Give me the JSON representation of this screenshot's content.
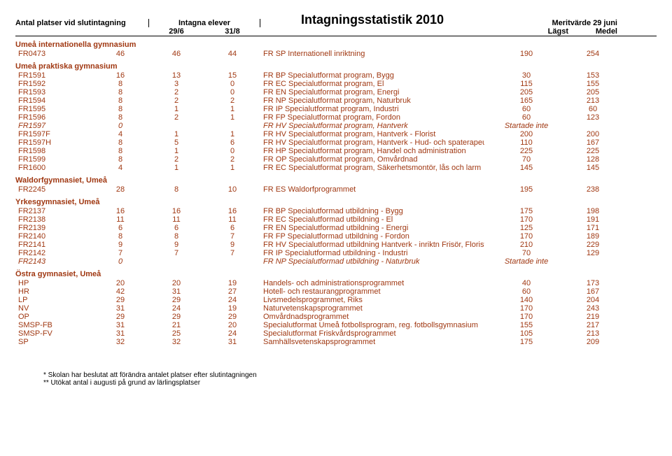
{
  "header": {
    "col1": "Antal platser vid slutintagning",
    "col2": "Intagna elever",
    "col3_title": "Intagningsstatistik 2010",
    "col4": "Meritvärde 29 juni",
    "sub_29_6": "29/6",
    "sub_31_8": "31/8",
    "sub_lagst": "Lägst",
    "sub_medel": "Medel"
  },
  "sections": [
    {
      "title": "Umeå internationella gymnasium",
      "rows": [
        {
          "code": "FR0473",
          "a": "46",
          "b": "46",
          "c": "44",
          "desc": "FR SP Internationell inriktning",
          "lagst": "190",
          "medel": "254"
        }
      ]
    },
    {
      "title": "Umeå praktiska gymnasium",
      "rows": [
        {
          "code": "FR1591",
          "a": "16",
          "b": "13",
          "c": "15",
          "desc": "FR BP Specialutformat program, Bygg",
          "lagst": "30",
          "medel": "153"
        },
        {
          "code": "FR1592",
          "a": "8",
          "b": "3",
          "c": "0",
          "desc": "FR EC Specialutformat program, El",
          "lagst": "115",
          "medel": "155"
        },
        {
          "code": "FR1593",
          "a": "8",
          "b": "2",
          "c": "0",
          "desc": "FR EN Specialutformat program, Energi",
          "lagst": "205",
          "medel": "205"
        },
        {
          "code": "FR1594",
          "a": "8",
          "b": "2",
          "c": "2",
          "desc": "FR NP Specialutformat program, Naturbruk",
          "lagst": "165",
          "medel": "213"
        },
        {
          "code": "FR1595",
          "a": "8",
          "b": "1",
          "c": "1",
          "desc": "FR IP Specialutformat program, Industri",
          "lagst": "60",
          "medel": "60"
        },
        {
          "code": "FR1596",
          "a": "8",
          "b": "2",
          "c": "1",
          "desc": "FR FP Specialutformat program, Fordon",
          "lagst": "60",
          "medel": "123"
        },
        {
          "code": "FR1597",
          "a": "0",
          "b": "",
          "c": "",
          "desc": "FR HV Specialutformat program, Hantverk",
          "lagst": "Startade inte",
          "medel": "",
          "italic": true
        },
        {
          "code": "FR1597F",
          "a": "4",
          "b": "1",
          "c": "1",
          "desc": "FR HV Specialutformat program, Hantverk - Florist",
          "lagst": "200",
          "medel": "200"
        },
        {
          "code": "FR1597H",
          "a": "8",
          "b": "5",
          "c": "6",
          "desc": "FR HV Specialutformat program, Hantverk - Hud- och spaterapeut",
          "lagst": "110",
          "medel": "167"
        },
        {
          "code": "FR1598",
          "a": "8",
          "b": "1",
          "c": "0",
          "desc": "FR HP Specialutformat program, Handel och administration",
          "lagst": "225",
          "medel": "225"
        },
        {
          "code": "FR1599",
          "a": "8",
          "b": "2",
          "c": "2",
          "desc": "FR OP Specialutformat program, Omvårdnad",
          "lagst": "70",
          "medel": "128"
        },
        {
          "code": "FR1600",
          "a": "4",
          "b": "1",
          "c": "1",
          "desc": "FR EC Specialutformat program, Säkerhetsmontör, lås och larm",
          "lagst": "145",
          "medel": "145"
        }
      ]
    },
    {
      "title": "Waldorfgymnasiet, Umeå",
      "rows": [
        {
          "code": "FR2245",
          "a": "28",
          "b": "8",
          "c": "10",
          "desc": "FR ES Waldorfprogrammet",
          "lagst": "195",
          "medel": "238"
        }
      ]
    },
    {
      "title": "Yrkesgymnasiet, Umeå",
      "rows": [
        {
          "code": "FR2137",
          "a": "16",
          "b": "16",
          "c": "16",
          "desc": "FR BP Specialutformad utbildning - Bygg",
          "lagst": "175",
          "medel": "198"
        },
        {
          "code": "FR2138",
          "a": "11",
          "b": "11",
          "c": "11",
          "desc": "FR EC Specialutformad utbildning - El",
          "lagst": "170",
          "medel": "191"
        },
        {
          "code": "FR2139",
          "a": "6",
          "b": "6",
          "c": "6",
          "desc": "FR EN Specialutformad utbildning - Energi",
          "lagst": "125",
          "medel": "171"
        },
        {
          "code": "FR2140",
          "a": "8",
          "b": "8",
          "c": "7",
          "desc": "FR FP Specialutformad utbildning - Fordon",
          "lagst": "170",
          "medel": "189"
        },
        {
          "code": "FR2141",
          "a": "9",
          "b": "9",
          "c": "9",
          "desc": "FR HV Specialutformad utbildning Hantverk - inriktn Frisör, Florist, Spa",
          "lagst": "210",
          "medel": "229"
        },
        {
          "code": "FR2142",
          "a": "7",
          "b": "7",
          "c": "7",
          "desc": "FR IP Specialutformad utbildning - Industri",
          "lagst": "70",
          "medel": "129"
        },
        {
          "code": "FR2143",
          "a": "0",
          "b": "",
          "c": "",
          "desc": "FR NP Specialutformad utbildning - Naturbruk",
          "lagst": "Startade inte",
          "medel": "",
          "italic": true
        }
      ]
    },
    {
      "title": "Östra gymnasiet, Umeå",
      "rows": [
        {
          "code": "HP",
          "a": "20",
          "b": "20",
          "c": "19",
          "desc": "Handels- och administrationsprogrammet",
          "lagst": "40",
          "medel": "173"
        },
        {
          "code": "HR",
          "a": "42",
          "b": "31",
          "c": "27",
          "desc": "Hotell- och restaurangprogrammet",
          "lagst": "60",
          "medel": "167"
        },
        {
          "code": "LP",
          "a": "29",
          "b": "29",
          "c": "24",
          "desc": "Livsmedelsprogrammet, Riks",
          "lagst": "140",
          "medel": "204"
        },
        {
          "code": "NV",
          "a": "31",
          "b": "24",
          "c": "19",
          "desc": "Naturvetenskapsprogrammet",
          "lagst": "170",
          "medel": "243"
        },
        {
          "code": "OP",
          "a": "29",
          "b": "29",
          "c": "29",
          "desc": "Omvårdnadsprogrammet",
          "lagst": "170",
          "medel": "219"
        },
        {
          "code": "SMSP-FB",
          "a": "31",
          "b": "21",
          "c": "20",
          "desc": "Specialutformat  Umeå fotbollsprogram, reg. fotbollsgymnasium",
          "lagst": "155",
          "medel": "217"
        },
        {
          "code": "SMSP-FV",
          "a": "31",
          "b": "25",
          "c": "24",
          "desc": "Specialutformat  Friskvårdsprogrammet",
          "lagst": "105",
          "medel": "213"
        },
        {
          "code": "SP",
          "a": "32",
          "b": "32",
          "c": "31",
          "desc": "Samhällsvetenskapsprogrammet",
          "lagst": "175",
          "medel": "209"
        }
      ]
    }
  ],
  "footnotes": {
    "f1": "* Skolan har beslutat att förändra antalet platser efter slutintagningen",
    "f2": "** Utökat antal i augusti på grund av lärlingsplatser"
  }
}
